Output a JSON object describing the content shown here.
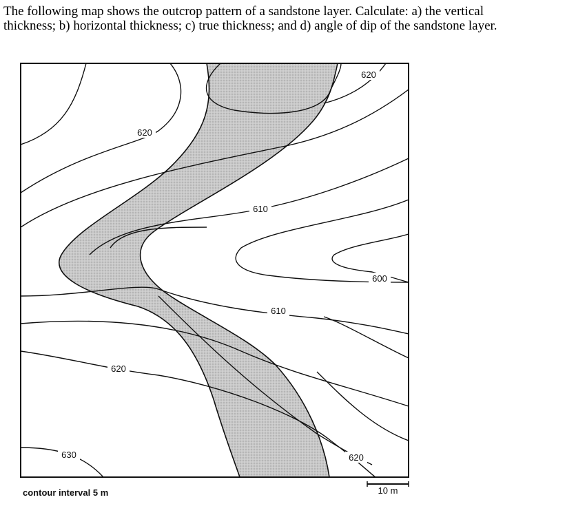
{
  "question": "The following map shows the outcrop pattern of a sandstone layer. Calculate: a) the vertical thickness; b) horizontal thickness; c) true thickness; and d) angle of dip of the sandstone layer.",
  "map": {
    "contour_labels": [
      "620",
      "620",
      "610",
      "600",
      "610",
      "620",
      "630",
      "620"
    ],
    "contour_interval": "contour interval 5 m",
    "scale": "10 m"
  }
}
